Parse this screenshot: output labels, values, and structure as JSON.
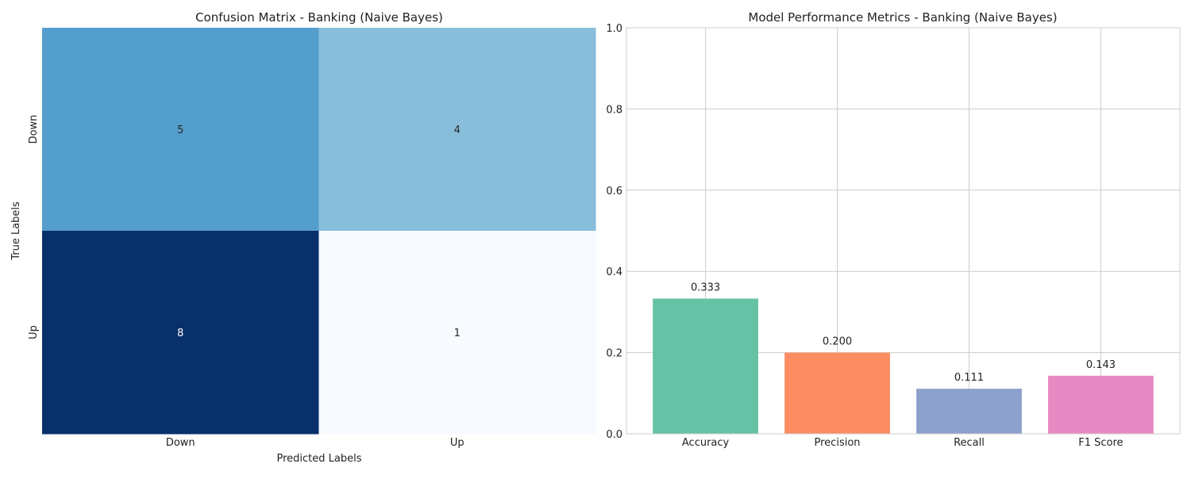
{
  "chart_data": [
    {
      "type": "heatmap",
      "title": "Confusion Matrix - Banking (Naive Bayes)",
      "xlabel": "Predicted Labels",
      "ylabel": "True Labels",
      "x_categories": [
        "Down",
        "Up"
      ],
      "y_categories": [
        "Down",
        "Up"
      ],
      "values": [
        [
          5,
          4
        ],
        [
          8,
          1
        ]
      ],
      "colormap": "Blues",
      "colorbar": false
    },
    {
      "type": "bar",
      "title": "Model Performance Metrics - Banking (Naive Bayes)",
      "categories": [
        "Accuracy",
        "Precision",
        "Recall",
        "F1 Score"
      ],
      "values": [
        0.333,
        0.2,
        0.111,
        0.143
      ],
      "value_labels": [
        "0.333",
        "0.200",
        "0.111",
        "0.143"
      ],
      "colors": [
        "#66c2a5",
        "#fc8d62",
        "#8da0cb",
        "#e78ac3"
      ],
      "xlabel": "",
      "ylabel": "",
      "ylim": [
        0,
        1.0
      ],
      "yticks": [
        "0.0",
        "0.2",
        "0.4",
        "0.6",
        "0.8",
        "1.0"
      ],
      "grid": true
    }
  ]
}
